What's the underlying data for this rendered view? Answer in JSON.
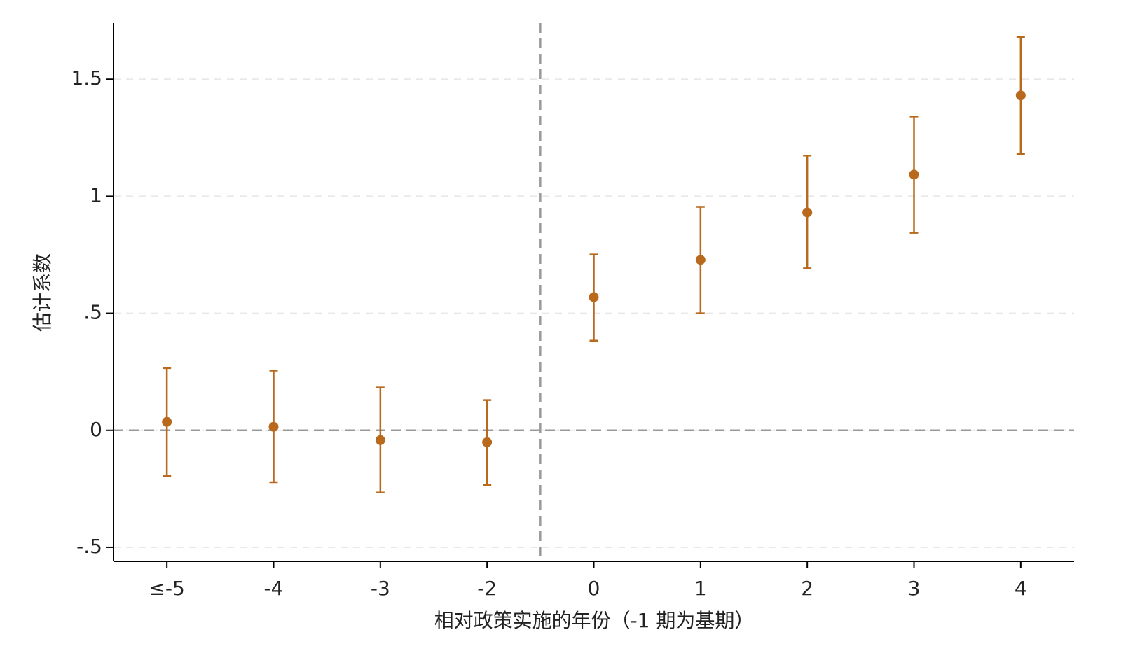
{
  "chart_data": {
    "type": "errorbar",
    "x_label": "相对政策实施的年份（-1 期为基期）",
    "y_label": "估计系数",
    "categories": [
      "≤-5",
      "-4",
      "-3",
      "-2",
      "0",
      "1",
      "2",
      "3",
      "4"
    ],
    "series": [
      {
        "color": "#b8691c",
        "values": [
          0.036,
          0.015,
          -0.042,
          -0.051,
          0.569,
          0.728,
          0.931,
          1.093,
          1.431
        ],
        "lower": [
          -0.195,
          -0.222,
          -0.266,
          -0.234,
          0.383,
          0.5,
          0.692,
          0.844,
          1.18
        ],
        "upper": [
          0.266,
          0.255,
          0.183,
          0.129,
          0.751,
          0.955,
          1.174,
          1.341,
          1.68
        ]
      }
    ],
    "ylim": [
      -0.56,
      1.74
    ],
    "yticks": [
      {
        "value": -0.5,
        "label": "-.5"
      },
      0,
      {
        "value": 0.5,
        "label": ".5"
      },
      1,
      1.5
    ],
    "hline": 0,
    "grid": true
  }
}
